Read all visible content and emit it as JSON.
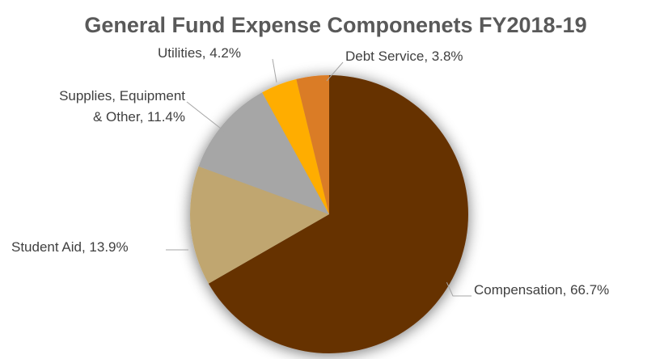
{
  "chart_data": {
    "type": "pie",
    "title": "General Fund Expense Componenets FY2018-19",
    "categories": [
      "Compensation",
      "Student Aid",
      "Supplies, Equipment & Other",
      "Utilities",
      "Debt Service"
    ],
    "values": [
      66.7,
      13.9,
      11.4,
      4.2,
      3.8
    ],
    "unit": "%",
    "data_labels": [
      [
        "Compensation, 66.7%"
      ],
      [
        "Student Aid, 13.9%"
      ],
      [
        "Supplies, Equipment",
        "& Other, 11.4%"
      ],
      [
        "Utilities, 4.2%"
      ],
      [
        "Debt Service, 3.8%"
      ]
    ],
    "colors": [
      "#663300",
      "#c0a670",
      "#a6a6a6",
      "#ffad00",
      "#da7b26"
    ],
    "start_angle_deg": 0,
    "direction": "clockwise",
    "legend": "none"
  }
}
